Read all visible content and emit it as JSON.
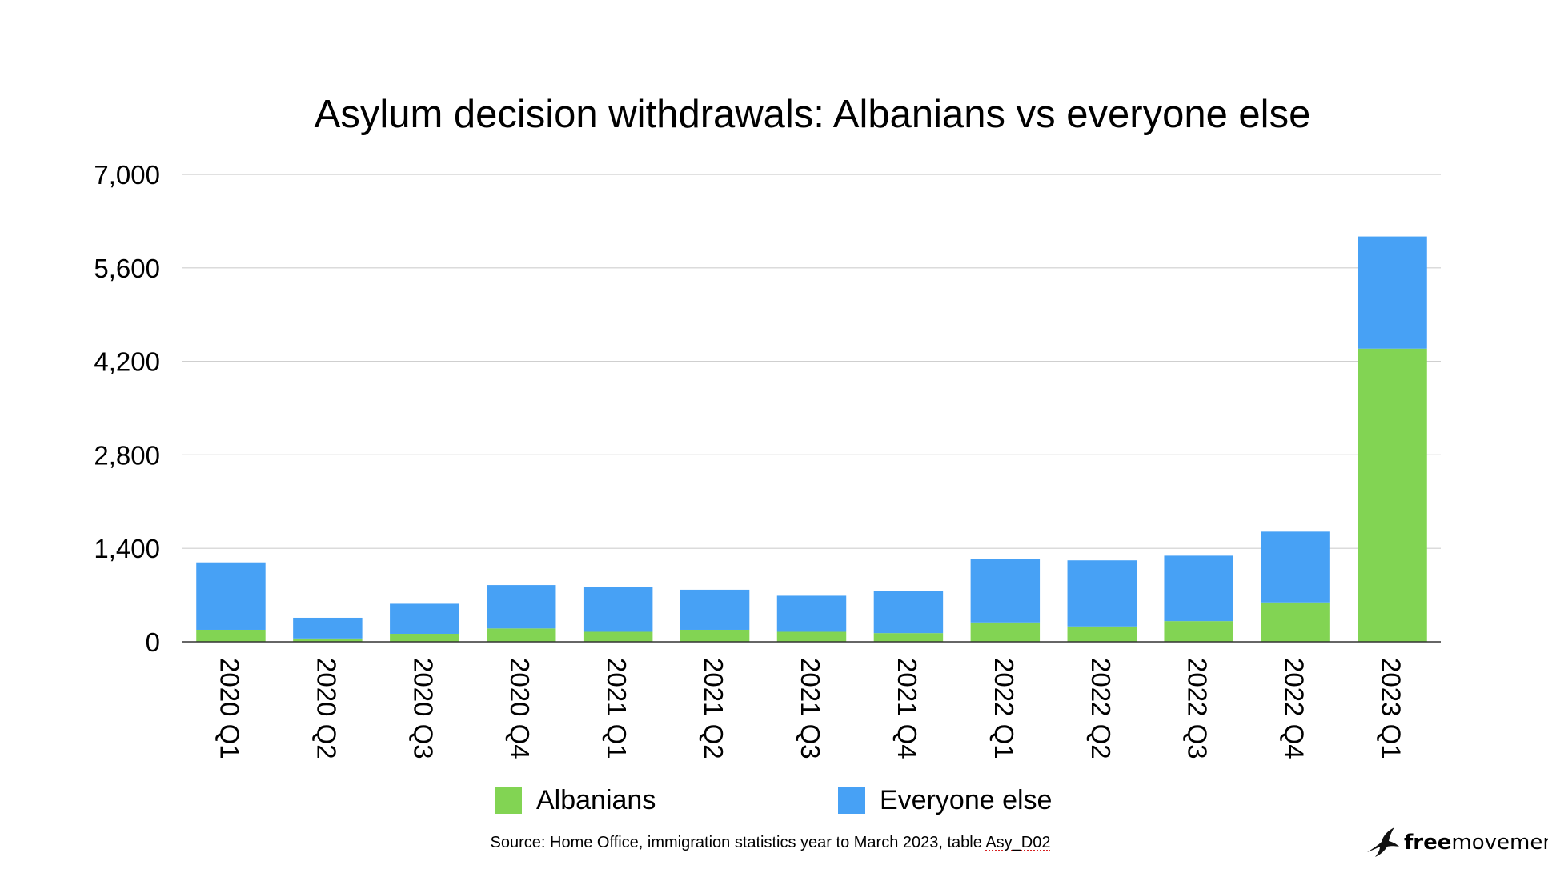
{
  "colors": {
    "albanians": "#82d453",
    "everyone_else": "#47a1f5",
    "grid": "#cfcfcf",
    "axis": "#333333",
    "text": "#000000"
  },
  "chart_data": {
    "type": "bar",
    "stacked": true,
    "title": "Asylum decision withdrawals: Albanians vs everyone else",
    "xlabel": "",
    "ylabel": "",
    "ylim": [
      0,
      7000
    ],
    "yticks": [
      0,
      1400,
      2800,
      4200,
      5600,
      7000
    ],
    "ytick_labels": [
      "0",
      "1,400",
      "2,800",
      "4,200",
      "5,600",
      "7,000"
    ],
    "grid": true,
    "categories": [
      "2020 Q1",
      "2020 Q2",
      "2020 Q3",
      "2020 Q4",
      "2021 Q1",
      "2021 Q2",
      "2021 Q3",
      "2021 Q4",
      "2022 Q1",
      "2022 Q2",
      "2022 Q3",
      "2022 Q4",
      "2023 Q1"
    ],
    "series": [
      {
        "name": "Albanians",
        "color": "#82d453",
        "values": [
          180,
          50,
          120,
          200,
          150,
          180,
          150,
          130,
          290,
          230,
          310,
          590,
          4390
        ]
      },
      {
        "name": "Everyone else",
        "color": "#47a1f5",
        "values": [
          1010,
          310,
          450,
          650,
          670,
          600,
          540,
          630,
          950,
          990,
          980,
          1060,
          1680
        ]
      }
    ],
    "legend_position": "bottom"
  },
  "source": {
    "text": "Source: Home Office, immigration statistics year to March 2023, table ",
    "table_ref": "Asy_D02"
  },
  "brand": {
    "free": "free",
    "movement": "movement",
    "logo_icon": "bird-icon"
  }
}
